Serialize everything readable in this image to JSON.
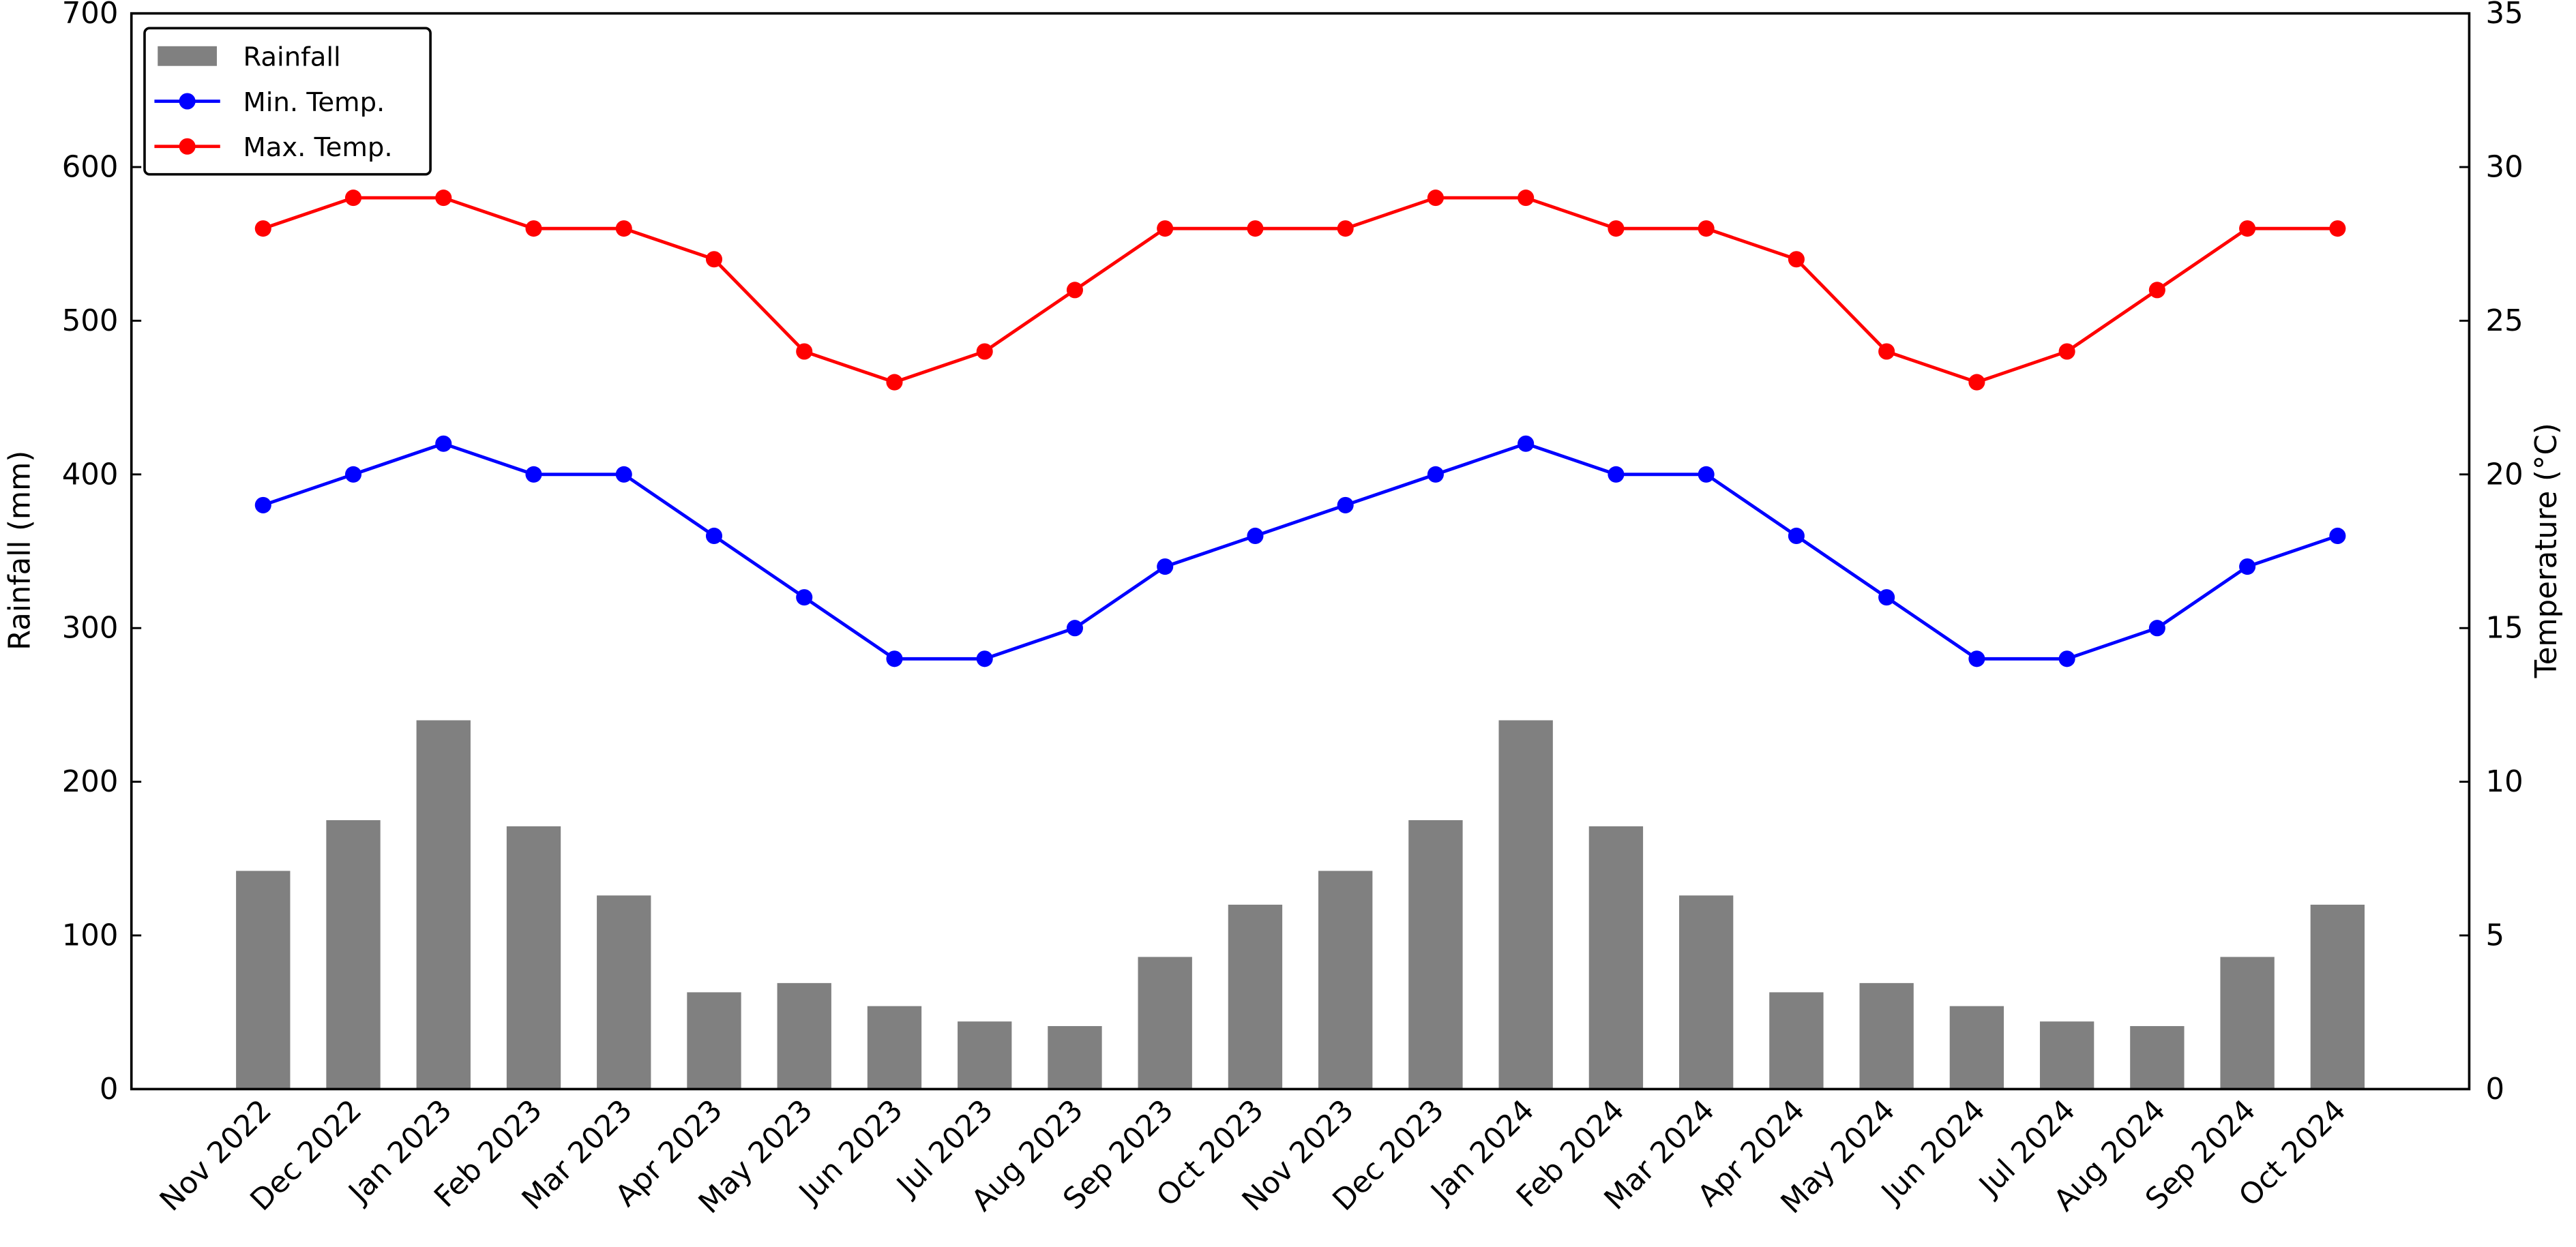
{
  "chart_data": {
    "type": "bar",
    "categories": [
      "Nov 2022",
      "Dec 2022",
      "Jan 2023",
      "Feb 2023",
      "Mar 2023",
      "Apr 2023",
      "May 2023",
      "Jun 2023",
      "Jul 2023",
      "Aug 2023",
      "Sep 2023",
      "Oct 2023",
      "Nov 2023",
      "Dec 2023",
      "Jan 2024",
      "Feb 2024",
      "Mar 2024",
      "Apr 2024",
      "May 2024",
      "Jun 2024",
      "Jul 2024",
      "Aug 2024",
      "Sep 2024",
      "Oct 2024"
    ],
    "series": [
      {
        "name": "Rainfall",
        "type": "bar",
        "color": "#808080",
        "axis": "y",
        "values": [
          142,
          175,
          240,
          171,
          126,
          63,
          69,
          54,
          44,
          41,
          86,
          120,
          142,
          175,
          240,
          171,
          126,
          63,
          69,
          54,
          44,
          41,
          86,
          120
        ]
      },
      {
        "name": "Min. Temp.",
        "type": "line",
        "color": "#0000ff",
        "axis": "y2",
        "values": [
          19,
          20,
          21,
          20,
          20,
          18,
          16,
          14,
          14,
          15,
          17,
          18,
          19,
          20,
          21,
          20,
          20,
          18,
          16,
          14,
          14,
          15,
          17,
          18
        ]
      },
      {
        "name": "Max. Temp.",
        "type": "line",
        "color": "#ff0000",
        "axis": "y2",
        "values": [
          28,
          29,
          29,
          28,
          28,
          27,
          24,
          23,
          24,
          26,
          28,
          28,
          28,
          29,
          29,
          28,
          28,
          27,
          24,
          23,
          24,
          26,
          28,
          28
        ]
      }
    ],
    "ylabel": "Rainfall (mm)",
    "y2label": "Temperature (°C)",
    "ylim": [
      0,
      700
    ],
    "yticks": [
      0,
      100,
      200,
      300,
      400,
      500,
      600,
      700
    ],
    "y2lim": [
      0,
      35
    ],
    "y2ticks": [
      0,
      5,
      10,
      15,
      20,
      25,
      30,
      35
    ],
    "grid": false,
    "legend": "upper left"
  }
}
